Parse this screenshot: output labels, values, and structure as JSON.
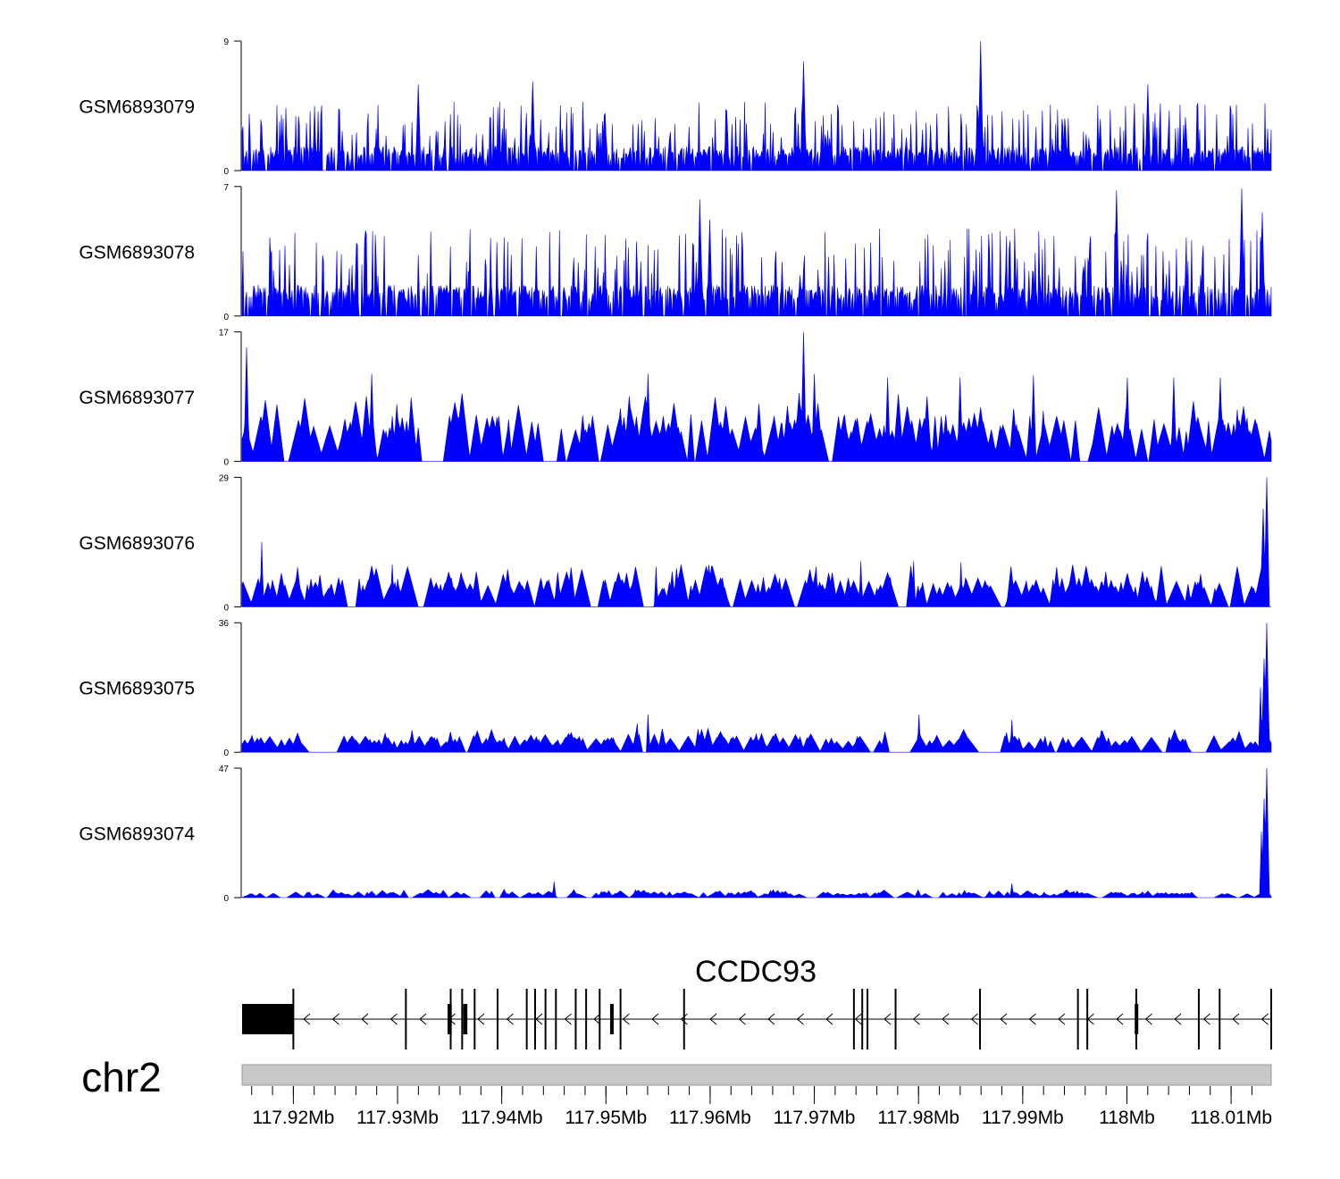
{
  "chart_data": {
    "type": "area",
    "title": "",
    "colors": {
      "signal": "#0000ff",
      "gene": "#000000",
      "ideogram": "#c8c8c8",
      "axis": "#000000"
    },
    "x_range_mb": [
      117.91508,
      118.01385
    ],
    "tracks": [
      {
        "name": "GSM6893079",
        "ymin": "0",
        "ymax": "9",
        "max_value": 9,
        "baseline": 1.2,
        "peaks": [
          [
            117.932,
            6.0
          ],
          [
            117.943,
            6.2
          ],
          [
            117.969,
            7.6
          ],
          [
            117.986,
            9.0
          ],
          [
            118.002,
            6.0
          ],
          [
            117.922,
            4.5
          ]
        ]
      },
      {
        "name": "GSM6893078",
        "ymin": "0",
        "ymax": "7",
        "max_value": 7,
        "baseline": 1.2,
        "peaks": [
          [
            117.959,
            6.3
          ],
          [
            117.999,
            6.8
          ],
          [
            118.011,
            6.9
          ],
          [
            118.013,
            5.6
          ],
          [
            117.96,
            5.2
          ]
        ]
      },
      {
        "name": "GSM6893077",
        "ymin": "0",
        "ymax": "17",
        "max_value": 17,
        "baseline": 4.8,
        "peaks": [
          [
            117.9155,
            15.0
          ],
          [
            117.969,
            17.0
          ],
          [
            117.9275,
            11.5
          ],
          [
            117.954,
            11.5
          ],
          [
            117.97,
            11.5
          ],
          [
            117.991,
            11.3
          ],
          [
            117.984,
            11.0
          ],
          [
            117.977,
            11.0
          ],
          [
            118.0,
            11.0
          ],
          [
            118.009,
            11.0
          ],
          [
            118.0045,
            11.0
          ]
        ]
      },
      {
        "name": "GSM6893076",
        "ymin": "0",
        "ymax": "29",
        "max_value": 29,
        "baseline": 5.0,
        "peaks": [
          [
            117.917,
            14.5
          ],
          [
            117.9295,
            9.5
          ],
          [
            117.9548,
            9.0
          ],
          [
            117.9702,
            9.0
          ],
          [
            117.9745,
            10.2
          ],
          [
            117.9795,
            10.2
          ],
          [
            117.9841,
            10.0
          ],
          [
            118.0134,
            29.0
          ],
          [
            118.0131,
            22.0
          ]
        ]
      },
      {
        "name": "GSM6893075",
        "ymin": "0",
        "ymax": "36",
        "max_value": 36,
        "baseline": 3.5,
        "peaks": [
          [
            117.954,
            10.5
          ],
          [
            117.953,
            8.0
          ],
          [
            117.98,
            10.5
          ],
          [
            117.989,
            9.0
          ],
          [
            118.0134,
            36.0
          ],
          [
            118.0132,
            26.0
          ],
          [
            118.0128,
            18.0
          ]
        ]
      },
      {
        "name": "GSM6893074",
        "ymin": "0",
        "ymax": "47",
        "max_value": 47,
        "baseline": 1.6,
        "peaks": [
          [
            117.945,
            5.8
          ],
          [
            117.989,
            5.2
          ],
          [
            118.0134,
            47.0
          ],
          [
            118.0132,
            36.0
          ],
          [
            118.0129,
            24.0
          ]
        ]
      }
    ],
    "gene": {
      "name": "CCDC93",
      "strand": "-",
      "start_mb": 117.91508,
      "end_mb": 118.01385,
      "utr_block_mb": [
        117.91508,
        117.92
      ],
      "exons_mb": [
        117.92,
        117.9308,
        117.9351,
        117.9362,
        117.9374,
        117.9396,
        117.9424,
        117.9432,
        117.9442,
        117.9452,
        117.9471,
        117.9481,
        117.9494,
        117.9514,
        117.9575,
        117.9738,
        117.9746,
        117.9751,
        117.9778,
        117.9859,
        117.9953,
        117.9962,
        118.0009,
        118.0069,
        118.0089,
        118.01385
      ],
      "thick_exons_mb": [
        [
          117.9348,
          117.9352
        ],
        [
          117.9363,
          117.9367
        ],
        [
          117.9504,
          117.9507
        ],
        [
          118.00075,
          118.001
        ]
      ]
    },
    "chromosome": {
      "label": "chr2",
      "ticks_mb": [
        117.92,
        117.93,
        117.94,
        117.95,
        117.96,
        117.97,
        117.98,
        117.99,
        118.0,
        118.01
      ],
      "tick_labels": [
        "117.92Mb",
        "117.93Mb",
        "117.94Mb",
        "117.95Mb",
        "117.96Mb",
        "117.97Mb",
        "117.98Mb",
        "117.99Mb",
        "118Mb",
        "118.01Mb"
      ],
      "minor_step_mb": 0.002
    }
  }
}
